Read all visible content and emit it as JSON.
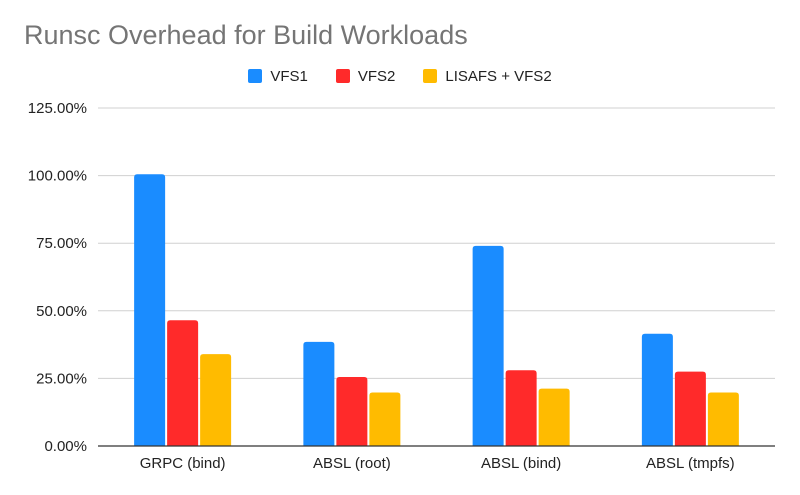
{
  "chart_data": {
    "type": "bar",
    "title": "Runsc Overhead for Build Workloads",
    "xlabel": "",
    "ylabel": "",
    "categories": [
      "GRPC (bind)",
      "ABSL (root)",
      "ABSL (bind)",
      "ABSL (tmpfs)"
    ],
    "series": [
      {
        "name": "VFS1",
        "color": "#1a8cff",
        "values": [
          100.5,
          38.5,
          74.0,
          41.5
        ]
      },
      {
        "name": "VFS2",
        "color": "#ff2a2a",
        "values": [
          46.5,
          25.5,
          28.0,
          27.5
        ]
      },
      {
        "name": "LISAFS + VFS2",
        "color": "#ffbb00",
        "values": [
          34.0,
          19.8,
          21.2,
          19.8
        ]
      }
    ],
    "ylim": [
      0,
      125
    ],
    "yticks": [
      0,
      25,
      50,
      75,
      100,
      125
    ],
    "ytick_labels": [
      "0.00%",
      "25.00%",
      "50.00%",
      "75.00%",
      "100.00%",
      "125.00%"
    ],
    "grid": true,
    "legend": "top-center",
    "gridline_color": "#d0d0d0",
    "axis_color": "#333333"
  }
}
